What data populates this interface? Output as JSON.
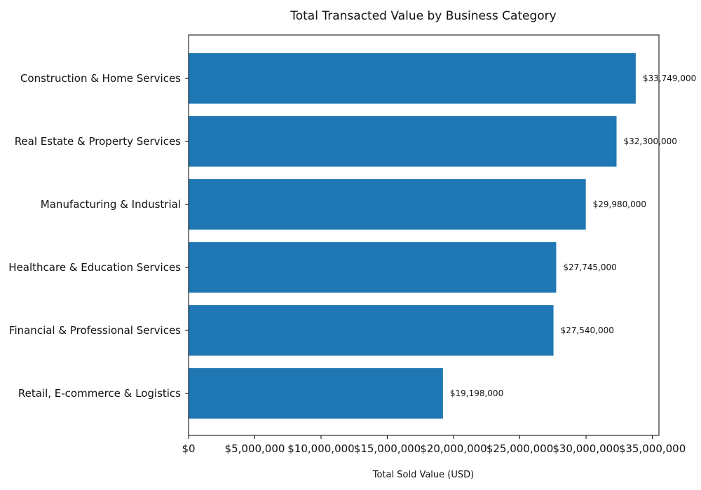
{
  "chart_data": {
    "type": "bar",
    "orientation": "horizontal",
    "title": "Total Transacted Value by Business Category",
    "xlabel": "Total Sold Value (USD)",
    "ylabel": "",
    "xlim": [
      0,
      35500000
    ],
    "grid": false,
    "bar_color": "#1f77b4",
    "categories": [
      "Construction & Home Services",
      "Real Estate & Property Services",
      "Manufacturing & Industrial",
      "Healthcare & Education Services",
      "Financial & Professional Services",
      "Retail, E-commerce & Logistics"
    ],
    "values": [
      33749000,
      32300000,
      29980000,
      27745000,
      27540000,
      19198000
    ],
    "value_labels": [
      "$33,749,000",
      "$32,300,000",
      "$29,980,000",
      "$27,745,000",
      "$27,540,000",
      "$19,198,000"
    ],
    "x_ticks": [
      0,
      5000000,
      10000000,
      15000000,
      20000000,
      25000000,
      30000000,
      35000000
    ],
    "x_tick_labels": [
      "$0",
      "$5,000,000",
      "$10,000,000",
      "$15,000,000",
      "$20,000,000",
      "$25,000,000",
      "$30,000,000",
      "$35,000,000"
    ]
  }
}
